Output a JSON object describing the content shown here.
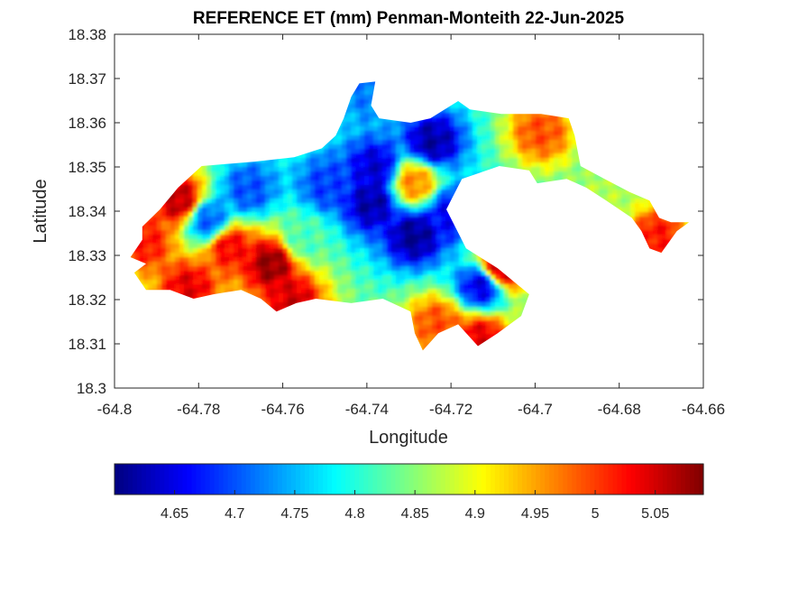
{
  "chart_data": {
    "type": "heatmap",
    "title": "REFERENCE ET (mm) Penman-Monteith 22-Jun-2025",
    "xlabel": "Longitude",
    "ylabel": "Latitude",
    "xlim": [
      -64.8,
      -64.66
    ],
    "ylim": [
      18.3,
      18.38
    ],
    "xticks": [
      -64.8,
      -64.78,
      -64.76,
      -64.74,
      -64.72,
      -64.7,
      -64.68,
      -64.66
    ],
    "xtick_labels": [
      "-64.8",
      "-64.78",
      "-64.76",
      "-64.74",
      "-64.72",
      "-64.7",
      "-64.68",
      "-64.66"
    ],
    "yticks": [
      18.3,
      18.31,
      18.32,
      18.33,
      18.34,
      18.35,
      18.36,
      18.37,
      18.38
    ],
    "ytick_labels": [
      "18.3",
      "18.31",
      "18.32",
      "18.33",
      "18.34",
      "18.35",
      "18.36",
      "18.37",
      "18.38"
    ],
    "colormap": "jet",
    "clim": [
      4.6,
      5.09
    ],
    "colorbar_ticks": [
      4.65,
      4.7,
      4.75,
      4.8,
      4.85,
      4.9,
      4.95,
      5,
      5.05
    ],
    "colorbar_tick_labels": [
      "4.65",
      "4.7",
      "4.75",
      "4.8",
      "4.85",
      "4.9",
      "4.95",
      "5",
      "5.05"
    ],
    "colorbar_location": "southoutside",
    "region_outline": [
      [
        -64.7934,
        18.3365
      ],
      [
        -64.7892,
        18.3404
      ],
      [
        -64.7849,
        18.3453
      ],
      [
        -64.7793,
        18.3502
      ],
      [
        -64.7667,
        18.3512
      ],
      [
        -64.7573,
        18.3522
      ],
      [
        -64.7507,
        18.3542
      ],
      [
        -64.7474,
        18.3571
      ],
      [
        -64.7455,
        18.361
      ],
      [
        -64.7437,
        18.3659
      ],
      [
        -64.7418,
        18.3689
      ],
      [
        -64.738,
        18.3693
      ],
      [
        -64.739,
        18.3639
      ],
      [
        -64.7371,
        18.361
      ],
      [
        -64.7296,
        18.36
      ],
      [
        -64.7249,
        18.361
      ],
      [
        -64.7183,
        18.3649
      ],
      [
        -64.7155,
        18.363
      ],
      [
        -64.708,
        18.362
      ],
      [
        -64.6986,
        18.362
      ],
      [
        -64.692,
        18.361
      ],
      [
        -64.6906,
        18.3571
      ],
      [
        -64.6892,
        18.3502
      ],
      [
        -64.6835,
        18.3473
      ],
      [
        -64.6775,
        18.3443
      ],
      [
        -64.6728,
        18.3424
      ],
      [
        -64.6705,
        18.3385
      ],
      [
        -64.6677,
        18.3375
      ],
      [
        -64.6634,
        18.3375
      ],
      [
        -64.6663,
        18.3355
      ],
      [
        -64.67,
        18.3306
      ],
      [
        -64.6728,
        18.3316
      ],
      [
        -64.6747,
        18.3355
      ],
      [
        -64.677,
        18.3385
      ],
      [
        -64.6831,
        18.3424
      ],
      [
        -64.6878,
        18.3453
      ],
      [
        -64.6925,
        18.3473
      ],
      [
        -64.6995,
        18.3463
      ],
      [
        -64.7014,
        18.3492
      ],
      [
        -64.7085,
        18.3502
      ],
      [
        -64.7174,
        18.3473
      ],
      [
        -64.7211,
        18.3404
      ],
      [
        -64.7164,
        18.3316
      ],
      [
        -64.7089,
        18.3271
      ],
      [
        -64.7014,
        18.3212
      ],
      [
        -64.7033,
        18.3163
      ],
      [
        -64.7089,
        18.3124
      ],
      [
        -64.7136,
        18.3095
      ],
      [
        -64.7183,
        18.3144
      ],
      [
        -64.723,
        18.3124
      ],
      [
        -64.7267,
        18.3085
      ],
      [
        -64.7286,
        18.3124
      ],
      [
        -64.7296,
        18.3173
      ],
      [
        -64.7362,
        18.3202
      ],
      [
        -64.7437,
        18.3192
      ],
      [
        -64.7521,
        18.3202
      ],
      [
        -64.7568,
        18.3192
      ],
      [
        -64.7615,
        18.3173
      ],
      [
        -64.7652,
        18.3202
      ],
      [
        -64.7699,
        18.3222
      ],
      [
        -64.7765,
        18.3212
      ],
      [
        -64.7812,
        18.3202
      ],
      [
        -64.7868,
        18.3222
      ],
      [
        -64.7925,
        18.3222
      ],
      [
        -64.7953,
        18.3261
      ],
      [
        -64.7925,
        18.3281
      ],
      [
        -64.7962,
        18.3296
      ],
      [
        -64.7934,
        18.3335
      ]
    ],
    "hotspots": [
      {
        "lon": -64.7627,
        "lat": 18.3281,
        "value": 5.08
      },
      {
        "lon": -64.7726,
        "lat": 18.332,
        "value": 5.03
      },
      {
        "lon": -64.7845,
        "lat": 18.3424,
        "value": 5.06
      },
      {
        "lon": -64.7824,
        "lat": 18.3226,
        "value": 5.04
      },
      {
        "lon": -64.7928,
        "lat": 18.333,
        "value": 5.02
      },
      {
        "lon": -64.7576,
        "lat": 18.3198,
        "value": 5.05
      },
      {
        "lon": -64.7083,
        "lat": 18.3271,
        "value": 5.06
      },
      {
        "lon": -64.713,
        "lat": 18.311,
        "value": 5.04
      },
      {
        "lon": -64.7233,
        "lat": 18.3144,
        "value": 4.99
      },
      {
        "lon": -64.6712,
        "lat": 18.334,
        "value": 5.02
      },
      {
        "lon": -64.6986,
        "lat": 18.358,
        "value": 4.99
      },
      {
        "lon": -64.7287,
        "lat": 18.3464,
        "value": 4.96
      },
      {
        "lon": -64.7776,
        "lat": 18.3379,
        "value": 4.71
      },
      {
        "lon": -64.7681,
        "lat": 18.3448,
        "value": 4.7
      },
      {
        "lon": -64.7493,
        "lat": 18.3457,
        "value": 4.69
      },
      {
        "lon": -64.738,
        "lat": 18.3497,
        "value": 4.64
      },
      {
        "lon": -64.7389,
        "lat": 18.3418,
        "value": 4.62
      },
      {
        "lon": -64.7287,
        "lat": 18.3345,
        "value": 4.61
      },
      {
        "lon": -64.7244,
        "lat": 18.3556,
        "value": 4.62
      },
      {
        "lon": -64.7202,
        "lat": 18.3394,
        "value": 4.66
      },
      {
        "lon": -64.7127,
        "lat": 18.3232,
        "value": 4.65
      },
      {
        "lon": -64.7395,
        "lat": 18.3668,
        "value": 4.72
      },
      {
        "lon": -64.6835,
        "lat": 18.3424,
        "value": 4.87
      },
      {
        "lon": -64.7549,
        "lat": 18.334,
        "value": 4.82
      }
    ],
    "background_value": 4.82
  }
}
